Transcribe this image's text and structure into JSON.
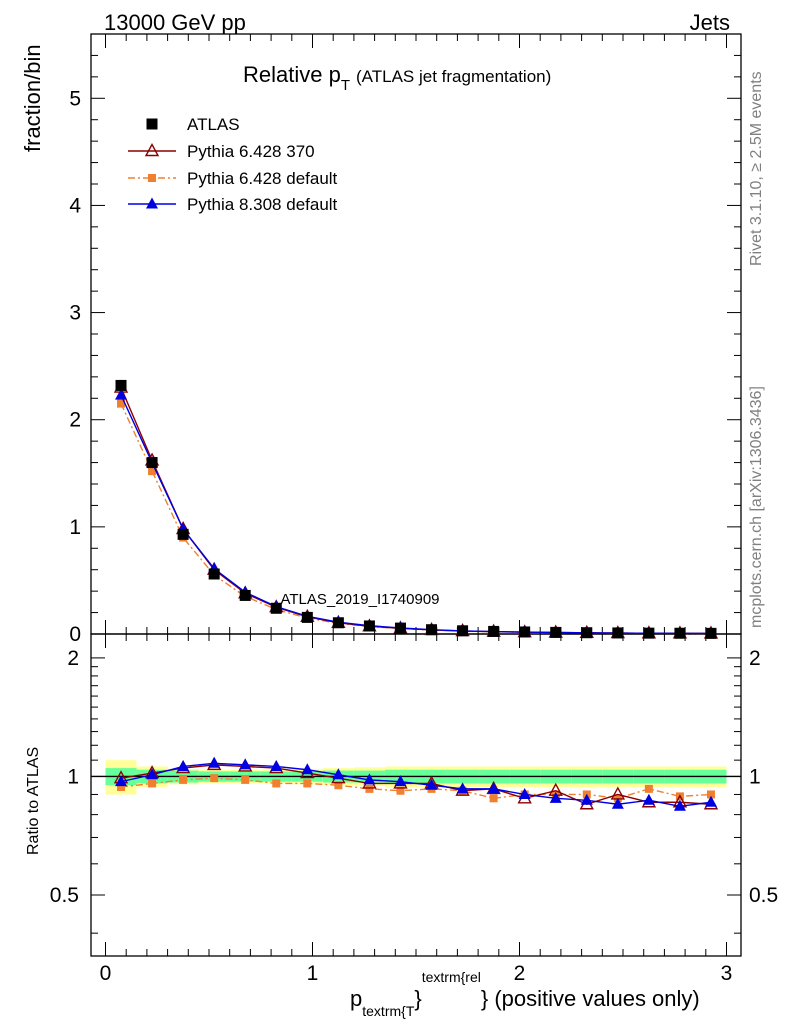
{
  "header": {
    "left": "13000 GeV pp",
    "right": "Jets"
  },
  "side_labels": {
    "rivet": "Rivet 3.1.10, ≥ 2.5M events",
    "mcplots": "mcplots.cern.ch [arXiv:1306.3436]"
  },
  "watermark": "ATLAS_2019_I1740909",
  "chart_data": {
    "type": "line",
    "title": "Relative p",
    "title_sub": "T",
    "title_suffix": "(ATLAS jet fragmentation)",
    "xlabel": {
      "p": "p",
      "sub": "textrm{T",
      "brace_close": "}",
      "sup": "textrm{rel",
      "rest": "} (positive values only)"
    },
    "ylabel": "fraction/bin",
    "ratio_ylabel": "Ratio to ATLAS",
    "xlim": [
      -0.07,
      3.07
    ],
    "ylim": [
      0,
      5.6
    ],
    "ratio_ylim": [
      0.35,
      2.3
    ],
    "x_ticks": [
      0,
      1,
      2,
      3
    ],
    "y_ticks": [
      0,
      1,
      2,
      3,
      4,
      5
    ],
    "ratio_y_ticks": [
      0.5,
      1,
      2
    ],
    "ratio_y_tick_labels": [
      "0.5",
      "1",
      "2"
    ],
    "x": [
      0.075,
      0.225,
      0.375,
      0.525,
      0.675,
      0.825,
      0.975,
      1.125,
      1.275,
      1.425,
      1.575,
      1.725,
      1.875,
      2.025,
      2.175,
      2.325,
      2.475,
      2.625,
      2.775,
      2.925
    ],
    "bin_edges": [
      0.0,
      0.15,
      0.3,
      0.45,
      0.6,
      0.75,
      0.9,
      1.05,
      1.2,
      1.35,
      1.5,
      1.65,
      1.8,
      1.95,
      2.1,
      2.25,
      2.4,
      2.55,
      2.7,
      2.85,
      3.0
    ],
    "band_green": [
      0.05,
      0.04,
      0.035,
      0.03,
      0.03,
      0.03,
      0.03,
      0.035,
      0.035,
      0.04,
      0.04,
      0.04,
      0.04,
      0.04,
      0.04,
      0.04,
      0.04,
      0.04,
      0.04,
      0.04
    ],
    "band_yellow": [
      0.1,
      0.06,
      0.045,
      0.04,
      0.04,
      0.04,
      0.045,
      0.05,
      0.055,
      0.06,
      0.06,
      0.06,
      0.06,
      0.06,
      0.06,
      0.06,
      0.06,
      0.06,
      0.06,
      0.06
    ],
    "legend": [
      "ATLAS",
      "Pythia 6.428 370",
      "Pythia 6.428 default",
      "Pythia 8.308 default"
    ],
    "series": [
      {
        "name": "ATLAS",
        "color": "#000000",
        "marker": "square",
        "values": [
          2.32,
          1.6,
          0.93,
          0.56,
          0.36,
          0.24,
          0.155,
          0.105,
          0.075,
          0.055,
          0.04,
          0.03,
          0.024,
          0.019,
          0.015,
          0.012,
          0.01,
          0.008,
          0.007,
          0.006
        ],
        "ratio": [
          1,
          1,
          1,
          1,
          1,
          1,
          1,
          1,
          1,
          1,
          1,
          1,
          1,
          1,
          1,
          1,
          1,
          1,
          1,
          1
        ]
      },
      {
        "name": "Pythia 6.428 370",
        "color": "#8b0000",
        "marker": "triangle-open",
        "dash": "",
        "values": [
          2.3,
          1.62,
          0.98,
          0.6,
          0.38,
          0.25,
          0.16,
          0.105,
          0.072,
          0.053,
          0.038,
          0.028,
          0.022,
          0.017,
          0.014,
          0.011,
          0.009,
          0.007,
          0.006,
          0.005
        ],
        "ratio": [
          0.99,
          1.02,
          1.05,
          1.07,
          1.06,
          1.05,
          1.02,
          0.99,
          0.96,
          0.96,
          0.96,
          0.92,
          0.93,
          0.88,
          0.92,
          0.85,
          0.9,
          0.86,
          0.86,
          0.85
        ]
      },
      {
        "name": "Pythia 6.428 default",
        "color": "#f08030",
        "marker": "square-small",
        "dash": "7,3,2,3",
        "values": [
          2.15,
          1.52,
          0.9,
          0.55,
          0.35,
          0.23,
          0.148,
          0.1,
          0.07,
          0.051,
          0.037,
          0.028,
          0.021,
          0.017,
          0.013,
          0.011,
          0.009,
          0.007,
          0.006,
          0.005
        ],
        "ratio": [
          0.94,
          0.96,
          0.98,
          0.99,
          0.98,
          0.96,
          0.96,
          0.95,
          0.93,
          0.92,
          0.93,
          0.92,
          0.88,
          0.9,
          0.9,
          0.9,
          0.88,
          0.93,
          0.89,
          0.9
        ]
      },
      {
        "name": "Pythia 8.308 default",
        "color": "#0000e0",
        "marker": "triangle",
        "dash": "",
        "values": [
          2.23,
          1.6,
          0.98,
          0.61,
          0.39,
          0.255,
          0.165,
          0.11,
          0.078,
          0.056,
          0.04,
          0.029,
          0.023,
          0.018,
          0.014,
          0.011,
          0.009,
          0.007,
          0.006,
          0.005
        ],
        "ratio": [
          0.97,
          1.01,
          1.06,
          1.08,
          1.07,
          1.06,
          1.04,
          1.01,
          0.98,
          0.97,
          0.95,
          0.93,
          0.93,
          0.9,
          0.88,
          0.87,
          0.85,
          0.87,
          0.84,
          0.86
        ]
      }
    ]
  }
}
